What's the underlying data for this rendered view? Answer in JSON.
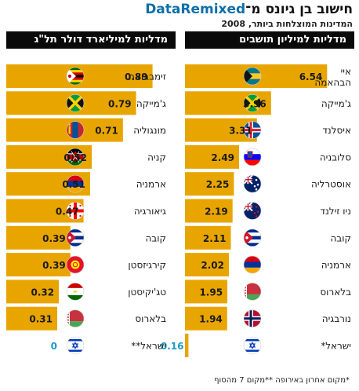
{
  "title_part1": "חישוב בן גיונס מ־",
  "title_brand": "DataRemixed",
  "subtitle": "המדינות המוצלחות ביותר, 2008",
  "footnote": "*מקום אחרון באירופה **מקום 7 מהסוף",
  "colors": {
    "bar": "#e8a500",
    "highlight_value": "#1a9bc7",
    "header_bg": "#0a0a0a",
    "brand": "#0f6fa8"
  },
  "chart_data": [
    {
      "type": "bar",
      "title": "מדליות למיליון תושבים",
      "categories": [
        "איי הבהאמה",
        "ג'מייקה",
        "איסלנד",
        "סלובניה",
        "אוסטרליה",
        "ניו זילנד",
        "קובה",
        "ארמניה",
        "בלארוס",
        "נורבגיה",
        "ישראל*"
      ],
      "values": [
        6.54,
        3.96,
        3.31,
        2.49,
        2.25,
        2.19,
        2.11,
        2.02,
        1.95,
        1.94,
        0.16
      ],
      "value_labels": [
        "6.54",
        "3.96",
        "3.31",
        "2.49",
        "2.25",
        "2.19",
        "2.11",
        "2.02",
        "1.95",
        "1.94",
        "0.16"
      ],
      "flags": [
        "bahamas",
        "jamaica",
        "iceland",
        "slovenia",
        "australia",
        "new-zealand",
        "cuba",
        "armenia",
        "belarus",
        "norway",
        "israel"
      ],
      "highlight": [
        false,
        false,
        false,
        false,
        false,
        false,
        false,
        false,
        false,
        false,
        true
      ]
    },
    {
      "type": "bar",
      "title": "מדליות למיליארד דולר תל\"ג",
      "categories": [
        "זימבבואה",
        "ג'מייקה",
        "מונגוליה",
        "קניה",
        "ארמניה",
        "גיאורגיה",
        "קובה",
        "קירגיזסטן",
        "טג'יקיסטן",
        "בלארוס",
        "ישראל**"
      ],
      "values": [
        0.89,
        0.79,
        0.71,
        0.52,
        0.51,
        0.47,
        0.39,
        0.39,
        0.32,
        0.31,
        0
      ],
      "value_labels": [
        "0.89",
        "0.79",
        "0.71",
        "0.52",
        "0.51",
        "0.47",
        "0.39",
        "0.39",
        "0.32",
        "0.31",
        "0"
      ],
      "flags": [
        "zimbabwe",
        "jamaica",
        "mongolia",
        "kenya",
        "armenia",
        "georgia",
        "cuba",
        "kyrgyzstan",
        "tajikistan",
        "belarus",
        "israel"
      ],
      "highlight": [
        false,
        false,
        false,
        false,
        false,
        false,
        false,
        false,
        false,
        false,
        true
      ]
    }
  ]
}
